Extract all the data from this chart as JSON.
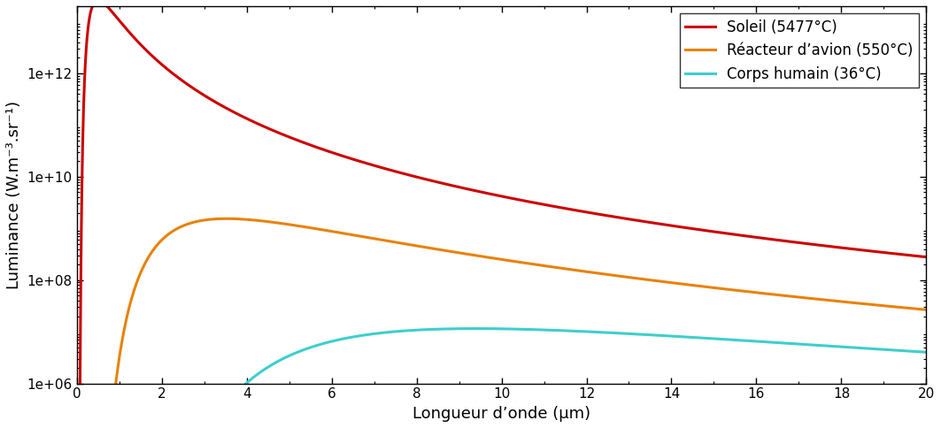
{
  "ylabel": "Luminance (W.m⁻³.sr⁻¹)",
  "xlabel": "Longueur d’onde (µm)",
  "series": [
    {
      "label": "Soleil (5477°C)",
      "T_K": 5750,
      "color": "#cc0000",
      "lw": 2.2
    },
    {
      "label": "Réacteur d’avion (550°C)",
      "T_K": 823,
      "color": "#e8820a",
      "lw": 2.2
    },
    {
      "label": "Corps humain (36°C)",
      "T_K": 309,
      "color": "#3ecece",
      "lw": 2.2
    }
  ],
  "xlim": [
    0,
    20
  ],
  "ylim_log": [
    1000000.0,
    20000000000000.0
  ],
  "lambda_min_um": 0.05,
  "lambda_max_um": 20.0,
  "n_points": 3000,
  "background_color": "#ffffff",
  "legend_loc": "upper right",
  "legend_fontsize": 12,
  "axis_label_fontsize": 13,
  "tick_fontsize": 11,
  "yticks": [
    1000000.0,
    100000000.0,
    10000000000.0,
    1000000000000.0
  ],
  "ytick_labels": [
    "1e+06",
    "1e+08",
    "1e+10",
    "1e+12"
  ]
}
